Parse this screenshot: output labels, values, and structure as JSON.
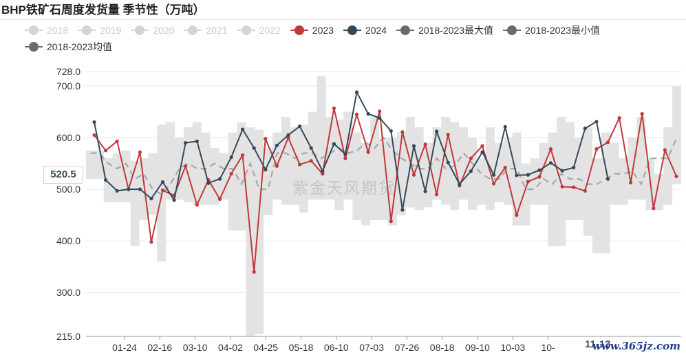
{
  "title": "BHP铁矿石周度发货量 季节性（万吨）",
  "legend": [
    {
      "label": "2018",
      "color": "#d4d4d4",
      "active": false
    },
    {
      "label": "2019",
      "color": "#d4d4d4",
      "active": false
    },
    {
      "label": "2020",
      "color": "#d4d4d4",
      "active": false
    },
    {
      "label": "2021",
      "color": "#d4d4d4",
      "active": false
    },
    {
      "label": "2022",
      "color": "#d4d4d4",
      "active": false
    },
    {
      "label": "2023",
      "color": "#c0383a",
      "active": true
    },
    {
      "label": "2024",
      "color": "#34495a",
      "active": true
    },
    {
      "label": "2018-2023最大值",
      "color": "#6a6a6a",
      "active": true
    },
    {
      "label": "2018-2023最小值",
      "color": "#6a6a6a",
      "active": true
    },
    {
      "label": "2018-2023均值",
      "color": "#6a6a6a",
      "active": true
    }
  ],
  "watermark": "紫金天风期货",
  "site_mark": "www.365jz.com",
  "cursor_value": "520.5",
  "hover_date": "11-13",
  "chart_data": {
    "type": "line",
    "ylim": [
      215,
      728
    ],
    "y_ticks": [
      215,
      300,
      400,
      500,
      600,
      700,
      728
    ],
    "y_tick_labels": [
      "215.0",
      "300.0",
      "400.0",
      "500.0",
      "600.0",
      "700.0",
      "728.0"
    ],
    "x_tick_labels": [
      "01-24",
      "02-16",
      "03-10",
      "04-02",
      "04-25",
      "05-18",
      "06-10",
      "07-03",
      "07-26",
      "08-18",
      "09-10",
      "10-03",
      "10-",
      "11-13"
    ],
    "grid": true,
    "band": {
      "name": "2018-2023最大值/最小值",
      "color": "#e3e3e3",
      "max": [
        575,
        575,
        560,
        570,
        575,
        555,
        560,
        570,
        625,
        630,
        600,
        620,
        630,
        610,
        580,
        570,
        610,
        630,
        620,
        615,
        580,
        610,
        640,
        620,
        625,
        650,
        720,
        640,
        635,
        650,
        610,
        590,
        640,
        600,
        600,
        610,
        640,
        620,
        590,
        620,
        640,
        630,
        620,
        600,
        560,
        620,
        590,
        600,
        610,
        550,
        560,
        590,
        610,
        640,
        630,
        600,
        620,
        560,
        610,
        590,
        560,
        600,
        640,
        560,
        530,
        620,
        700
      ],
      "min": [
        520,
        520,
        475,
        475,
        475,
        390,
        440,
        450,
        360,
        480,
        480,
        475,
        470,
        470,
        470,
        480,
        420,
        420,
        215,
        220,
        450,
        480,
        470,
        470,
        455,
        480,
        480,
        480,
        460,
        480,
        440,
        430,
        440,
        440,
        430,
        450,
        465,
        460,
        465,
        480,
        470,
        460,
        480,
        460,
        470,
        460,
        475,
        470,
        430,
        430,
        470,
        470,
        390,
        390,
        440,
        440,
        410,
        376,
        376,
        470,
        470,
        480,
        480,
        460,
        460,
        470,
        510
      ],
      "mean": [
        570,
        570,
        550,
        540,
        550,
        520,
        530,
        500,
        490,
        510,
        540,
        550,
        540,
        540,
        550,
        540,
        540,
        510,
        550,
        500,
        500,
        570,
        570,
        560,
        570,
        570,
        560,
        570,
        580,
        570,
        575,
        590,
        580,
        600,
        575,
        560,
        550,
        540,
        540,
        560,
        540,
        545,
        570,
        550,
        530,
        520,
        520,
        540,
        540,
        500,
        500,
        520,
        510,
        530,
        520,
        520,
        510,
        510,
        520,
        530,
        530,
        535,
        510,
        560,
        560,
        560,
        600
      ]
    },
    "series": [
      {
        "name": "2023",
        "color": "#c0383a",
        "values": [
          605,
          575,
          593,
          500,
          572,
          398,
          498,
          488,
          545,
          470,
          518,
          481,
          530,
          566,
          340,
          598,
          545,
          600,
          548,
          555,
          530,
          657,
          560,
          645,
          572,
          651,
          438,
          611,
          528,
          587,
          490,
          606,
          507,
          560,
          584,
          511,
          542,
          450,
          515,
          524,
          578,
          505,
          504,
          497,
          578,
          591,
          638,
          513,
          646,
          463,
          576,
          525
        ]
      },
      {
        "name": "2024",
        "color": "#34495a",
        "values": [
          630,
          518,
          497,
          500,
          500,
          482,
          514,
          479,
          590,
          593,
          512,
          520,
          562,
          616,
          580,
          538,
          585,
          605,
          622,
          580,
          535,
          588,
          568,
          688,
          646,
          638,
          613,
          460,
          584,
          496,
          612,
          552,
          510,
          535,
          572,
          528,
          621,
          527,
          528,
          537,
          551,
          536,
          542,
          618,
          631,
          520
        ]
      }
    ]
  }
}
